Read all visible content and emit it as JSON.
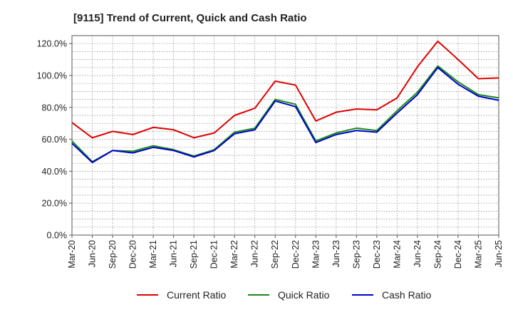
{
  "chart_data": {
    "type": "line",
    "title": "[9115]  Trend of Current, Quick and Cash Ratio",
    "xlabel": "",
    "ylabel": "",
    "ylim": [
      0,
      125
    ],
    "y_ticks": [
      0,
      20,
      40,
      60,
      80,
      100,
      120
    ],
    "y_tick_labels": [
      "0.0%",
      "20.0%",
      "40.0%",
      "60.0%",
      "80.0%",
      "100.0%",
      "120.0%"
    ],
    "categories": [
      "Mar-20",
      "Jun-20",
      "Sep-20",
      "Dec-20",
      "Mar-21",
      "Jun-21",
      "Sep-21",
      "Dec-21",
      "Mar-22",
      "Jun-22",
      "Sep-22",
      "Dec-22",
      "Mar-23",
      "Jun-23",
      "Sep-23",
      "Dec-23",
      "Mar-24",
      "Jun-24",
      "Sep-24",
      "Dec-24",
      "Mar-25",
      "Jun-25"
    ],
    "grid": true,
    "legend_position": "bottom",
    "series": [
      {
        "name": "Current Ratio",
        "color": "#e00000",
        "values": [
          70.5,
          61.0,
          65.0,
          63.0,
          67.5,
          66.0,
          61.0,
          64.0,
          75.0,
          79.5,
          96.5,
          94.0,
          71.5,
          77.0,
          79.0,
          78.5,
          86.0,
          105.5,
          121.5,
          110.0,
          98.0,
          98.5
        ]
      },
      {
        "name": "Quick Ratio",
        "color": "#1a8a1a",
        "values": [
          59.0,
          46.0,
          53.0,
          52.5,
          56.0,
          53.5,
          49.5,
          53.5,
          64.5,
          67.0,
          85.0,
          82.0,
          59.0,
          64.0,
          67.0,
          65.5,
          78.0,
          89.5,
          106.0,
          96.0,
          88.0,
          86.0
        ]
      },
      {
        "name": "Cash Ratio",
        "color": "#0000cc",
        "values": [
          57.5,
          45.5,
          53.0,
          51.5,
          55.0,
          53.0,
          49.0,
          53.0,
          63.5,
          66.0,
          84.0,
          80.5,
          58.0,
          63.0,
          65.5,
          64.5,
          76.5,
          88.0,
          105.0,
          94.5,
          87.0,
          84.5
        ]
      }
    ]
  }
}
